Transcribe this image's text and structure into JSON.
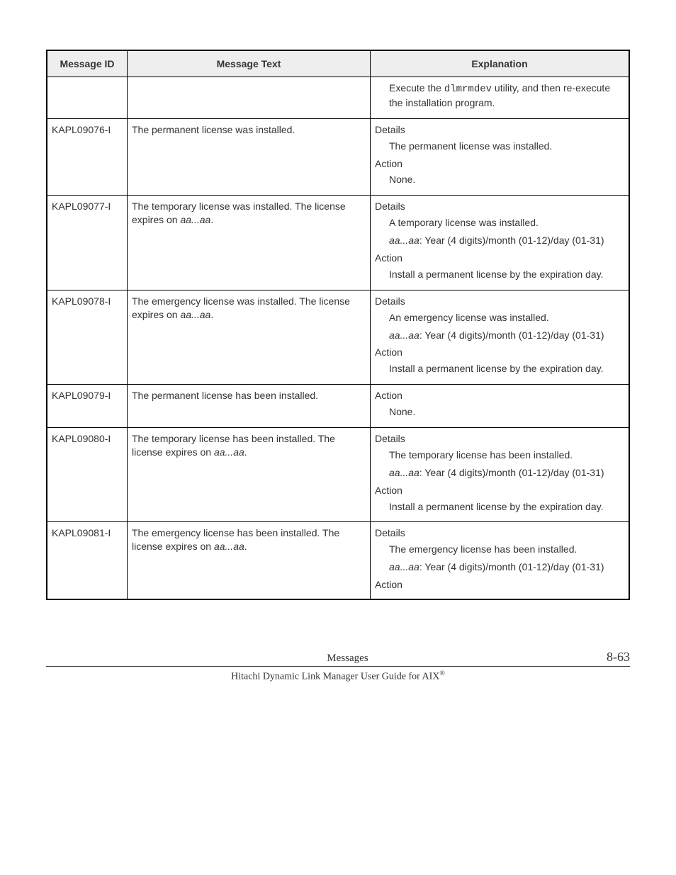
{
  "table": {
    "headers": {
      "id": "Message ID",
      "text": "Message Text",
      "exp": "Explanation"
    },
    "rows": [
      {
        "id": "",
        "text": "",
        "exp": {
          "pre_html": "Execute the <span class=\"mono\">dlmrmdev</span> utility, and then re-execute the installation program."
        }
      },
      {
        "id": "KAPL09076-I",
        "text": "The permanent license was installed.",
        "exp": {
          "details_label": "Details",
          "details": [
            "The permanent license was installed."
          ],
          "action_label": "Action",
          "action": [
            "None."
          ]
        }
      },
      {
        "id": "KAPL09077-I",
        "text_html": "The temporary license was installed. The license expires on <span class=\"italic\">aa...aa</span>.",
        "exp": {
          "details_label": "Details",
          "details": [
            "A temporary license was installed.",
            "<span class=\"italic\">aa...aa</span>: Year (4 digits)/month (01-12)/day (01-31)"
          ],
          "action_label": "Action",
          "action": [
            "Install a permanent license by the expiration day."
          ]
        }
      },
      {
        "id": "KAPL09078-I",
        "text_html": "The emergency license was installed. The license expires on <span class=\"italic\">aa...aa</span>.",
        "exp": {
          "details_label": "Details",
          "details": [
            "An emergency license was installed.",
            "<span class=\"italic\">aa...aa</span>: Year (4 digits)/month (01-12)/day (01-31)"
          ],
          "action_label": "Action",
          "action": [
            "Install a permanent license by the expiration day."
          ]
        }
      },
      {
        "id": "KAPL09079-I",
        "text": "The permanent license has been installed.",
        "exp": {
          "action_label": "Action",
          "action": [
            "None."
          ]
        }
      },
      {
        "id": "KAPL09080-I",
        "text_html": "The temporary license has been installed. The license expires on <span class=\"italic\">aa...aa</span>.",
        "exp": {
          "details_label": "Details",
          "details": [
            "The temporary license has been installed.",
            "<span class=\"italic\">aa...aa</span>: Year (4 digits)/month (01-12)/day (01-31)"
          ],
          "action_label": "Action",
          "action": [
            "Install a permanent license by the expiration day."
          ]
        }
      },
      {
        "id": "KAPL09081-I",
        "text_html": "The emergency license has been installed. The license expires on <span class=\"italic\">aa...aa</span>.",
        "exp": {
          "details_label": "Details",
          "details": [
            "The emergency license has been installed.",
            "<span class=\"italic\">aa...aa</span>: Year (4 digits)/month (01-12)/day (01-31)"
          ],
          "action_label": "Action"
        }
      }
    ]
  },
  "footer": {
    "section": "Messages",
    "page": "8-63",
    "book": "Hitachi Dynamic Link Manager User Guide for AIX",
    "reg": "®"
  }
}
